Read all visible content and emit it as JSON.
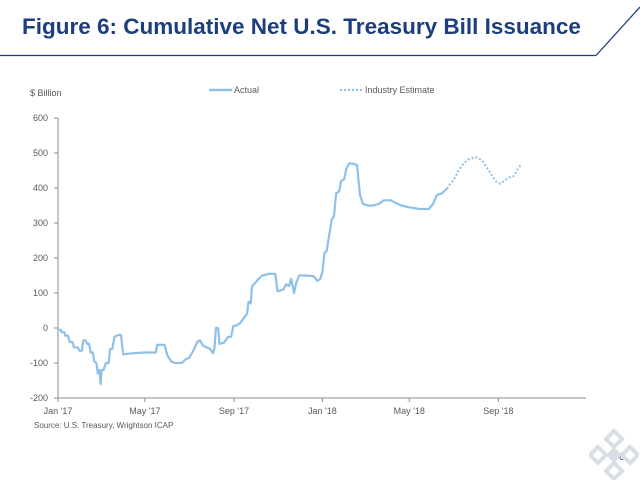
{
  "slide": {
    "title": "Figure 6: Cumulative Net U.S. Treasury Bill Issuance",
    "page_number": "6",
    "colors": {
      "title": "#1c3f7c",
      "header_line": "#1c3f7c",
      "series": "#8fc0e8",
      "axis": "#8c8c8c",
      "text": "#595959",
      "logo": "#d8dde6"
    }
  },
  "chart_data": {
    "type": "line",
    "title": "",
    "unit_label": "$ Billion",
    "source": "Source: U.S. Treasury, Wrightson ICAP",
    "ylim": [
      -200,
      600
    ],
    "yticks": [
      -200,
      -100,
      0,
      100,
      200,
      300,
      400,
      500,
      600
    ],
    "xlim": [
      "2017-01-01",
      "2018-12-31"
    ],
    "xticks": [
      {
        "date": "2017-01-01",
        "label": "Jan '17"
      },
      {
        "date": "2017-05-01",
        "label": "May '17"
      },
      {
        "date": "2017-09-01",
        "label": "Sep '17"
      },
      {
        "date": "2018-01-01",
        "label": "Jan '18"
      },
      {
        "date": "2018-05-01",
        "label": "May '18"
      },
      {
        "date": "2018-09-01",
        "label": "Sep '18"
      }
    ],
    "grid": false,
    "legend_position": "top",
    "series": [
      {
        "name": "Actual",
        "style": "solid",
        "color": "#8fc0e8",
        "points": [
          [
            "2017-01-01",
            -5
          ],
          [
            "2017-01-05",
            -5
          ],
          [
            "2017-01-06",
            -12
          ],
          [
            "2017-01-10",
            -12
          ],
          [
            "2017-01-11",
            -22
          ],
          [
            "2017-01-15",
            -22
          ],
          [
            "2017-01-17",
            -40
          ],
          [
            "2017-01-21",
            -40
          ],
          [
            "2017-01-23",
            -55
          ],
          [
            "2017-01-28",
            -55
          ],
          [
            "2017-01-31",
            -65
          ],
          [
            "2017-02-03",
            -65
          ],
          [
            "2017-02-05",
            -35
          ],
          [
            "2017-02-08",
            -35
          ],
          [
            "2017-02-10",
            -45
          ],
          [
            "2017-02-13",
            -45
          ],
          [
            "2017-02-15",
            -70
          ],
          [
            "2017-02-18",
            -70
          ],
          [
            "2017-02-20",
            -95
          ],
          [
            "2017-02-23",
            -100
          ],
          [
            "2017-02-25",
            -130
          ],
          [
            "2017-02-27",
            -120
          ],
          [
            "2017-03-01",
            -160
          ],
          [
            "2017-03-02",
            -120
          ],
          [
            "2017-03-05",
            -120
          ],
          [
            "2017-03-08",
            -100
          ],
          [
            "2017-03-12",
            -100
          ],
          [
            "2017-03-14",
            -60
          ],
          [
            "2017-03-17",
            -60
          ],
          [
            "2017-03-20",
            -25
          ],
          [
            "2017-03-25",
            -20
          ],
          [
            "2017-03-29",
            -20
          ],
          [
            "2017-04-01",
            -75
          ],
          [
            "2017-04-15",
            -72
          ],
          [
            "2017-05-01",
            -70
          ],
          [
            "2017-05-16",
            -70
          ],
          [
            "2017-05-18",
            -48
          ],
          [
            "2017-05-28",
            -48
          ],
          [
            "2017-06-01",
            -78
          ],
          [
            "2017-06-06",
            -95
          ],
          [
            "2017-06-11",
            -100
          ],
          [
            "2017-06-21",
            -100
          ],
          [
            "2017-06-26",
            -90
          ],
          [
            "2017-07-01",
            -85
          ],
          [
            "2017-07-04",
            -75
          ],
          [
            "2017-07-08",
            -60
          ],
          [
            "2017-07-12",
            -40
          ],
          [
            "2017-07-16",
            -35
          ],
          [
            "2017-07-20",
            -50
          ],
          [
            "2017-07-25",
            -55
          ],
          [
            "2017-07-30",
            -60
          ],
          [
            "2017-08-03",
            -72
          ],
          [
            "2017-08-05",
            -60
          ],
          [
            "2017-08-07",
            0
          ],
          [
            "2017-08-10",
            0
          ],
          [
            "2017-08-12",
            -45
          ],
          [
            "2017-08-18",
            -42
          ],
          [
            "2017-08-24",
            -25
          ],
          [
            "2017-08-28",
            -25
          ],
          [
            "2017-08-31",
            5
          ],
          [
            "2017-09-05",
            8
          ],
          [
            "2017-09-10",
            15
          ],
          [
            "2017-09-15",
            30
          ],
          [
            "2017-09-19",
            40
          ],
          [
            "2017-09-21",
            75
          ],
          [
            "2017-09-24",
            70
          ],
          [
            "2017-09-26",
            120
          ],
          [
            "2017-09-30",
            128
          ],
          [
            "2017-10-05",
            140
          ],
          [
            "2017-10-10",
            150
          ],
          [
            "2017-10-20",
            155
          ],
          [
            "2017-10-28",
            155
          ],
          [
            "2017-10-31",
            105
          ],
          [
            "2017-11-08",
            110
          ],
          [
            "2017-11-12",
            125
          ],
          [
            "2017-11-16",
            120
          ],
          [
            "2017-11-19",
            140
          ],
          [
            "2017-11-23",
            100
          ],
          [
            "2017-11-26",
            130
          ],
          [
            "2017-11-30",
            150
          ],
          [
            "2017-12-10",
            150
          ],
          [
            "2017-12-20",
            148
          ],
          [
            "2017-12-25",
            135
          ],
          [
            "2017-12-29",
            140
          ],
          [
            "2018-01-01",
            160
          ],
          [
            "2018-01-04",
            215
          ],
          [
            "2018-01-07",
            220
          ],
          [
            "2018-01-10",
            260
          ],
          [
            "2018-01-14",
            310
          ],
          [
            "2018-01-17",
            320
          ],
          [
            "2018-01-20",
            385
          ],
          [
            "2018-01-24",
            390
          ],
          [
            "2018-01-27",
            420
          ],
          [
            "2018-01-31",
            425
          ],
          [
            "2018-02-03",
            455
          ],
          [
            "2018-02-07",
            470
          ],
          [
            "2018-02-12",
            470
          ],
          [
            "2018-02-18",
            465
          ],
          [
            "2018-02-20",
            420
          ],
          [
            "2018-02-22",
            380
          ],
          [
            "2018-02-26",
            355
          ],
          [
            "2018-03-05",
            350
          ],
          [
            "2018-03-12",
            350
          ],
          [
            "2018-03-20",
            355
          ],
          [
            "2018-03-27",
            365
          ],
          [
            "2018-04-05",
            365
          ],
          [
            "2018-04-10",
            360
          ],
          [
            "2018-04-20",
            350
          ],
          [
            "2018-05-01",
            345
          ],
          [
            "2018-05-15",
            340
          ],
          [
            "2018-05-28",
            340
          ],
          [
            "2018-06-03",
            355
          ],
          [
            "2018-06-08",
            380
          ],
          [
            "2018-06-15",
            385
          ],
          [
            "2018-06-22",
            398
          ]
        ]
      },
      {
        "name": "Industry Estimate",
        "style": "dotted",
        "color": "#8fc0e8",
        "points": [
          [
            "2018-06-22",
            398
          ],
          [
            "2018-06-26",
            410
          ],
          [
            "2018-07-02",
            425
          ],
          [
            "2018-07-08",
            450
          ],
          [
            "2018-07-15",
            470
          ],
          [
            "2018-07-22",
            482
          ],
          [
            "2018-08-01",
            488
          ],
          [
            "2018-08-09",
            480
          ],
          [
            "2018-08-15",
            462
          ],
          [
            "2018-08-22",
            440
          ],
          [
            "2018-08-29",
            418
          ],
          [
            "2018-09-04",
            412
          ],
          [
            "2018-09-10",
            422
          ],
          [
            "2018-09-16",
            430
          ],
          [
            "2018-09-23",
            435
          ],
          [
            "2018-09-28",
            455
          ],
          [
            "2018-10-03",
            468
          ]
        ]
      }
    ]
  }
}
